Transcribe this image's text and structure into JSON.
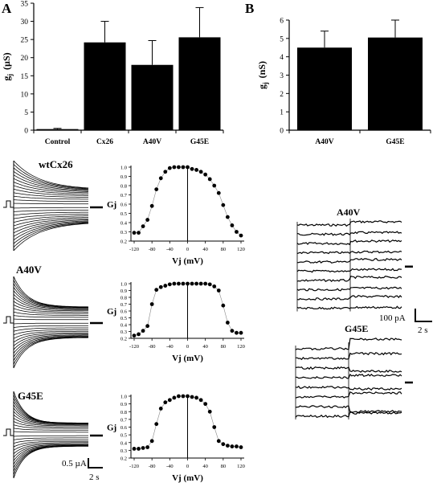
{
  "panel_labels": {
    "a": "A",
    "b": "B"
  },
  "scale_bars": {
    "left_current": "0.5 µA",
    "left_time": "2 s",
    "right_current": "100 pA",
    "right_time": "2 s"
  },
  "trace_labels": {
    "wt": "wtCx26",
    "a40v": "A40V",
    "g45e": "G45E",
    "right_a40v": "A40V",
    "right_g45e": "G45E"
  },
  "chart_data": [
    {
      "type": "bar",
      "panel": "A",
      "categories": [
        "Control",
        "Cx26",
        "A40V",
        "G45E"
      ],
      "values": [
        0.3,
        24.2,
        18.0,
        25.6
      ],
      "error": [
        0.2,
        5.8,
        6.7,
        8.2
      ],
      "ylabel": "gj (µS)",
      "ylabel_main": "g",
      "ylabel_sub": "j",
      "ylabel_unit": "(µS)",
      "ylim": [
        0,
        35
      ],
      "yticks": [
        0,
        5,
        10,
        15,
        20,
        25,
        30,
        35
      ]
    },
    {
      "type": "bar",
      "panel": "B",
      "categories": [
        "A40V",
        "G45E"
      ],
      "values": [
        4.5,
        5.05
      ],
      "error": [
        0.9,
        0.95
      ],
      "ylabel": "gj (nS)",
      "ylabel_main": "g",
      "ylabel_sub": "j",
      "ylabel_unit": "(nS)",
      "ylim": [
        0,
        6
      ],
      "yticks": [
        0,
        1,
        2,
        3,
        4,
        5,
        6
      ]
    },
    {
      "type": "scatter",
      "name": "wtCx26",
      "x": [
        -120,
        -110,
        -100,
        -90,
        -80,
        -70,
        -60,
        -50,
        -40,
        -30,
        -20,
        -10,
        0,
        10,
        20,
        30,
        40,
        50,
        60,
        70,
        80,
        90,
        100,
        110,
        120
      ],
      "y": [
        0.29,
        0.29,
        0.36,
        0.43,
        0.58,
        0.76,
        0.88,
        0.95,
        0.99,
        1.0,
        1.0,
        1.0,
        1.0,
        0.98,
        0.97,
        0.95,
        0.92,
        0.87,
        0.8,
        0.72,
        0.59,
        0.46,
        0.37,
        0.3,
        0.26
      ],
      "xlabel": "Vj (mV)",
      "ylabel": "Gj",
      "xlim": [
        -120,
        120
      ],
      "ylim": [
        0.2,
        1.0
      ],
      "xticks": [
        -120,
        -80,
        -40,
        0,
        40,
        80,
        120
      ],
      "yticks": [
        0.2,
        0.3,
        0.4,
        0.5,
        0.6,
        0.7,
        0.8,
        0.9,
        1.0
      ]
    },
    {
      "type": "scatter",
      "name": "A40V",
      "x": [
        -120,
        -110,
        -100,
        -90,
        -80,
        -70,
        -60,
        -50,
        -40,
        -30,
        -20,
        -10,
        0,
        10,
        20,
        30,
        40,
        50,
        60,
        70,
        80,
        90,
        100,
        110,
        120
      ],
      "y": [
        0.24,
        0.26,
        0.31,
        0.38,
        0.7,
        0.91,
        0.95,
        0.97,
        0.99,
        1.0,
        1.0,
        1.0,
        1.0,
        1.0,
        1.0,
        1.0,
        1.0,
        0.99,
        0.96,
        0.9,
        0.68,
        0.43,
        0.31,
        0.28,
        0.28
      ],
      "xlabel": "Vj (mV)",
      "ylabel": "Gj",
      "xlim": [
        -120,
        120
      ],
      "ylim": [
        0.2,
        1.0
      ],
      "xticks": [
        -120,
        -80,
        -40,
        0,
        40,
        80,
        120
      ],
      "yticks": [
        0.2,
        0.3,
        0.4,
        0.5,
        0.6,
        0.7,
        0.8,
        0.9,
        1.0
      ]
    },
    {
      "type": "scatter",
      "name": "G45E",
      "x": [
        -120,
        -110,
        -100,
        -90,
        -80,
        -70,
        -60,
        -50,
        -40,
        -30,
        -20,
        -10,
        0,
        10,
        20,
        30,
        40,
        50,
        60,
        70,
        80,
        90,
        100,
        110,
        120
      ],
      "y": [
        0.32,
        0.32,
        0.33,
        0.34,
        0.42,
        0.64,
        0.84,
        0.92,
        0.95,
        0.98,
        1.0,
        1.0,
        1.0,
        0.99,
        0.98,
        0.95,
        0.9,
        0.8,
        0.6,
        0.42,
        0.38,
        0.36,
        0.35,
        0.35,
        0.34
      ],
      "xlabel": "Vj (mV)",
      "ylabel": "Gj",
      "xlim": [
        -120,
        120
      ],
      "ylim": [
        0.2,
        1.0
      ],
      "xticks": [
        -120,
        -80,
        -40,
        0,
        40,
        80,
        120
      ],
      "yticks": [
        0.2,
        0.3,
        0.4,
        0.5,
        0.6,
        0.7,
        0.8,
        0.9,
        1.0
      ]
    }
  ]
}
